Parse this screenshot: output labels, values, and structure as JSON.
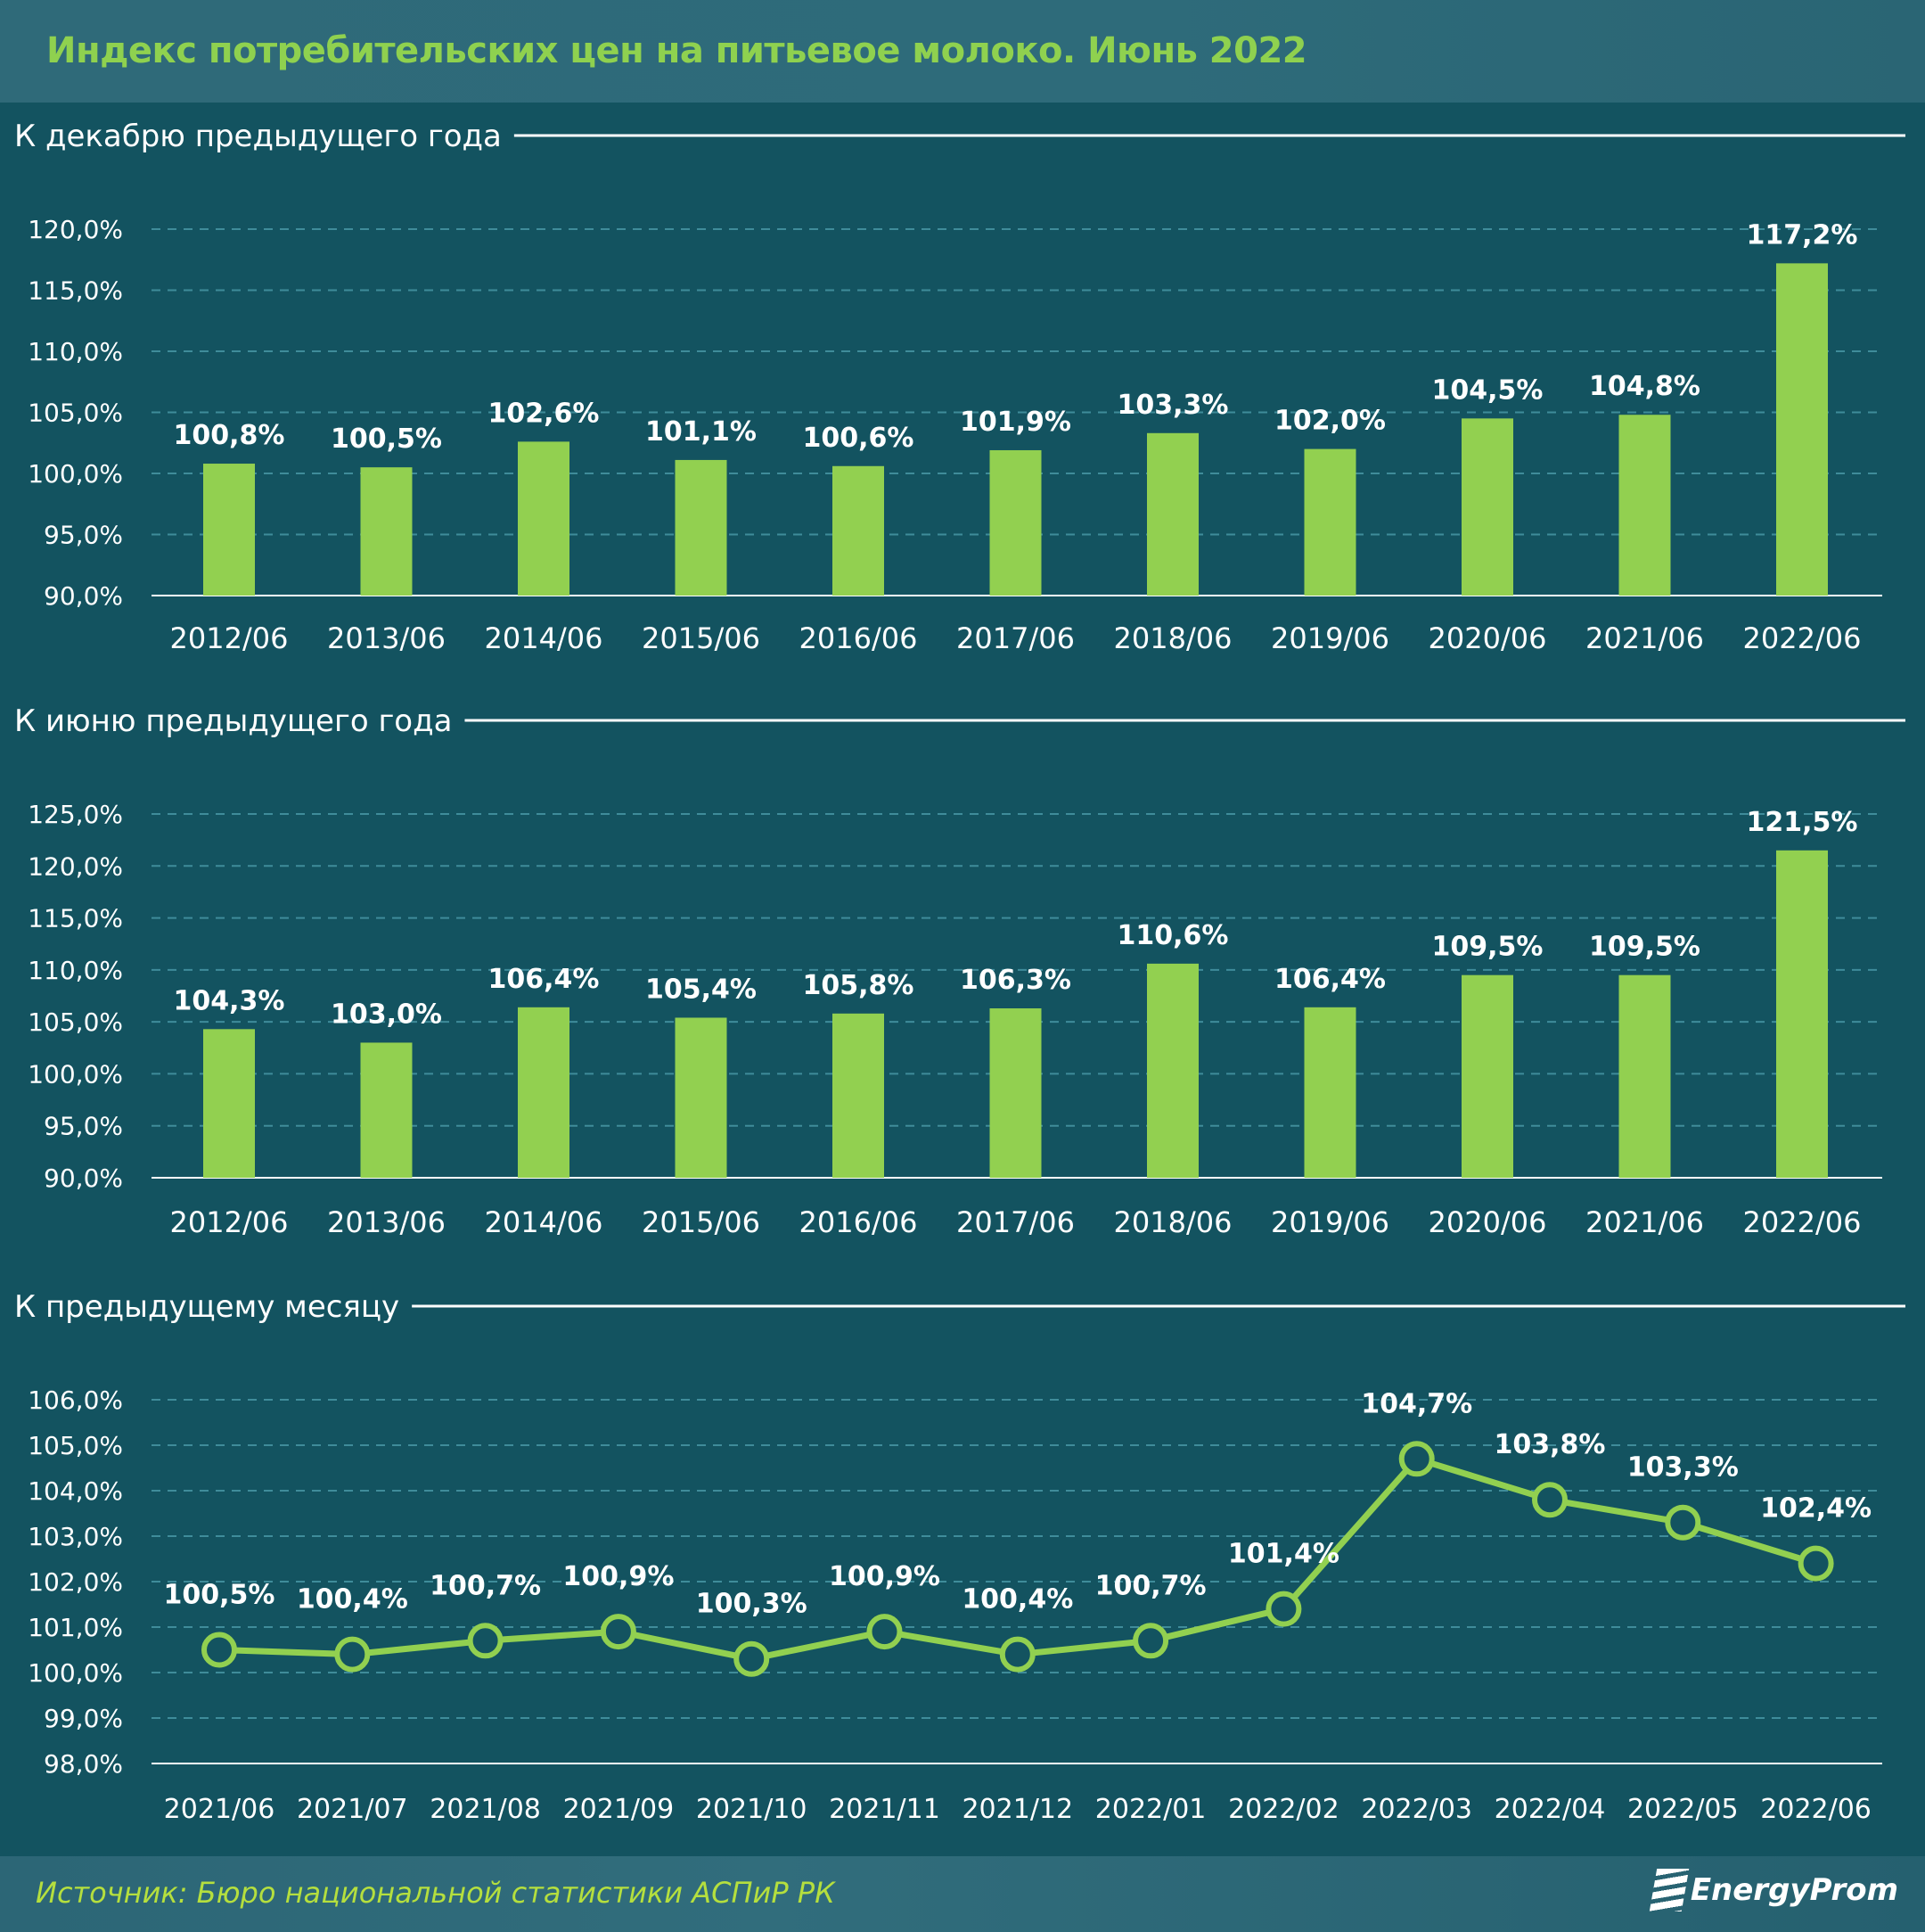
{
  "title": "Индекс потребительских цен на питьевое молоко. Июнь 2022",
  "footer": {
    "source": "Источник: Бюро национальной статистики АСПиР РК",
    "logo": "EnergyProm"
  },
  "colors": {
    "background": "#135360",
    "bar": "#92d050",
    "title": "#8fd14f",
    "grid": "#3f8c9a",
    "text": "#ffffff"
  },
  "chart_data": [
    {
      "type": "bar",
      "title": "К декабрю предыдущего года",
      "categories": [
        "2012/06",
        "2013/06",
        "2014/06",
        "2015/06",
        "2016/06",
        "2017/06",
        "2018/06",
        "2019/06",
        "2020/06",
        "2021/06",
        "2022/06"
      ],
      "values": [
        100.8,
        100.5,
        102.6,
        101.1,
        100.6,
        101.9,
        103.3,
        102.0,
        104.5,
        104.8,
        117.2
      ],
      "labels": [
        "100,8%",
        "100,5%",
        "102,6%",
        "101,1%",
        "100,6%",
        "101,9%",
        "103,3%",
        "102,0%",
        "104,5%",
        "104,8%",
        "117,2%"
      ],
      "yticks": [
        "90,0%",
        "95,0%",
        "100,0%",
        "105,0%",
        "110,0%",
        "115,0%",
        "120,0%"
      ],
      "ylim": [
        90,
        120
      ],
      "grid": true
    },
    {
      "type": "bar",
      "title": "К июню предыдущего года",
      "categories": [
        "2012/06",
        "2013/06",
        "2014/06",
        "2015/06",
        "2016/06",
        "2017/06",
        "2018/06",
        "2019/06",
        "2020/06",
        "2021/06",
        "2022/06"
      ],
      "values": [
        104.3,
        103.0,
        106.4,
        105.4,
        105.8,
        106.3,
        110.6,
        106.4,
        109.5,
        109.5,
        121.5
      ],
      "labels": [
        "104,3%",
        "103,0%",
        "106,4%",
        "105,4%",
        "105,8%",
        "106,3%",
        "110,6%",
        "106,4%",
        "109,5%",
        "109,5%",
        "121,5%"
      ],
      "yticks": [
        "90,0%",
        "95,0%",
        "100,0%",
        "105,0%",
        "110,0%",
        "115,0%",
        "120,0%",
        "125,0%"
      ],
      "ylim": [
        90,
        125
      ],
      "grid": true
    },
    {
      "type": "line",
      "title": "К предыдущему месяцу",
      "categories": [
        "2021/06",
        "2021/07",
        "2021/08",
        "2021/09",
        "2021/10",
        "2021/11",
        "2021/12",
        "2022/01",
        "2022/02",
        "2022/03",
        "2022/04",
        "2022/05",
        "2022/06"
      ],
      "values": [
        100.5,
        100.4,
        100.7,
        100.9,
        100.3,
        100.9,
        100.4,
        100.7,
        101.4,
        104.7,
        103.8,
        103.3,
        102.4
      ],
      "labels": [
        "100,5%",
        "100,4%",
        "100,7%",
        "100,9%",
        "100,3%",
        "100,9%",
        "100,4%",
        "100,7%",
        "101,4%",
        "104,7%",
        "103,8%",
        "103,3%",
        "102,4%"
      ],
      "yticks": [
        "98,0%",
        "99,0%",
        "100,0%",
        "101,0%",
        "102,0%",
        "103,0%",
        "104,0%",
        "105,0%",
        "106,0%"
      ],
      "ylim": [
        98,
        106
      ],
      "grid": true
    }
  ]
}
